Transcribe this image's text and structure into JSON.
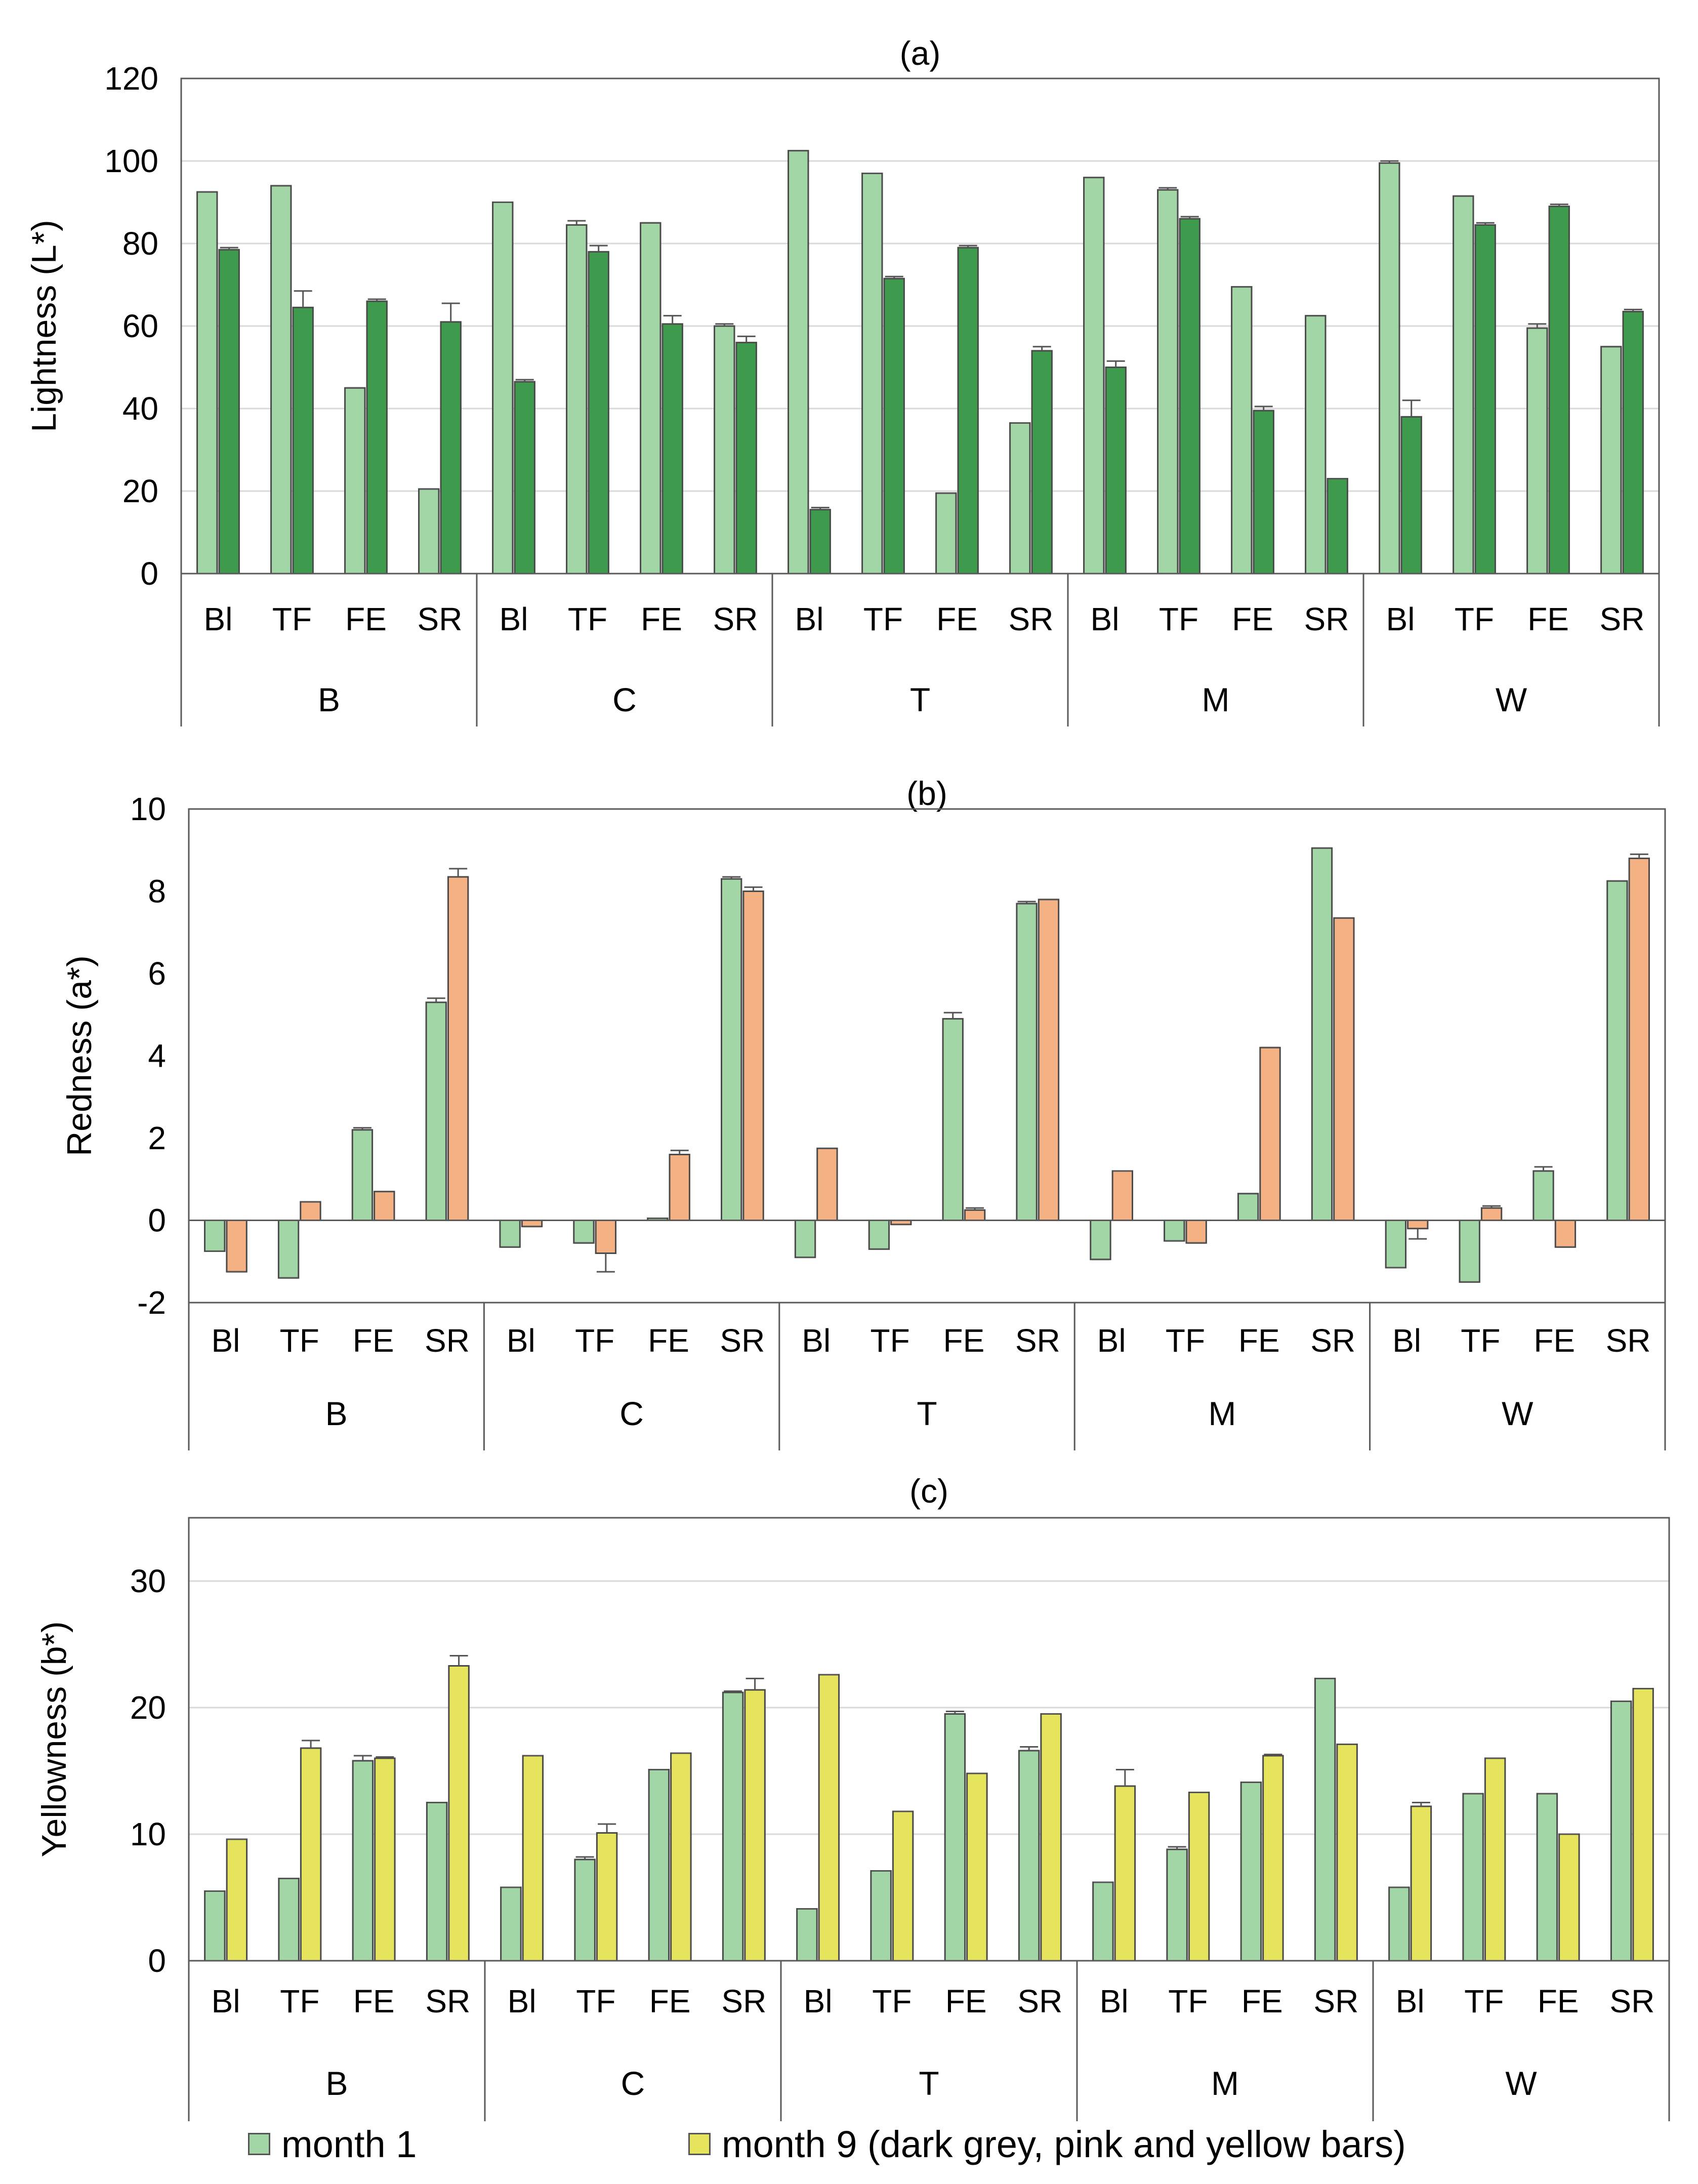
{
  "chart_data": [
    {
      "type": "bar",
      "title": "(a)",
      "title_bold_part": "a",
      "ylabel": "Lightness (L*)",
      "ylim": [
        0,
        120
      ],
      "yticks": [
        0,
        20,
        40,
        60,
        80,
        100,
        120
      ],
      "grid": true,
      "groups": [
        "B",
        "C",
        "T",
        "M",
        "W"
      ],
      "categories": [
        "Bl",
        "TF",
        "FE",
        "SR"
      ],
      "series": [
        {
          "name": "month 1",
          "color": "#a2d6a6",
          "values": [
            [
              92.5,
              94,
              45,
              20.5
            ],
            [
              90,
              84.5,
              85,
              60
            ],
            [
              102.5,
              97,
              19.5,
              36.5
            ],
            [
              96,
              93,
              69.5,
              62.5
            ],
            [
              99.5,
              91.5,
              59.5,
              55
            ]
          ],
          "errors": [
            [
              0,
              0,
              0,
              0
            ],
            [
              0,
              1,
              0,
              0.5
            ],
            [
              0,
              0,
              0,
              0
            ],
            [
              0,
              0.5,
              0,
              0
            ],
            [
              0.5,
              0,
              1,
              0
            ]
          ]
        },
        {
          "name": "month 9",
          "color": "#3e9a4c",
          "values": [
            [
              78.5,
              64.5,
              66,
              61
            ],
            [
              46.5,
              78,
              60.5,
              56
            ],
            [
              15.5,
              71.5,
              79,
              54
            ],
            [
              50,
              86,
              39.5,
              23
            ],
            [
              38,
              84.5,
              89,
              63.5
            ]
          ],
          "errors": [
            [
              0.5,
              4,
              0.5,
              4.5
            ],
            [
              0.5,
              1.5,
              2,
              1.5
            ],
            [
              0.5,
              0.5,
              0.5,
              1
            ],
            [
              1.5,
              0.5,
              1,
              0
            ],
            [
              4,
              0.5,
              0.5,
              0.5
            ]
          ]
        }
      ]
    },
    {
      "type": "bar",
      "title": "(b)",
      "title_bold_part": "b",
      "ylabel": "Redness (a*)",
      "ylim": [
        -2,
        10
      ],
      "yticks": [
        -2,
        0,
        2,
        4,
        6,
        8,
        10
      ],
      "grid": false,
      "groups": [
        "B",
        "C",
        "T",
        "M",
        "W"
      ],
      "categories": [
        "Bl",
        "TF",
        "FE",
        "SR"
      ],
      "series": [
        {
          "name": "month 1",
          "color": "#a2d6a6",
          "values": [
            [
              -0.75,
              -1.4,
              2.2,
              5.3
            ],
            [
              -0.65,
              -0.55,
              0.05,
              8.3
            ],
            [
              -0.9,
              -0.7,
              4.9,
              7.7
            ],
            [
              -0.95,
              -0.5,
              0.65,
              9.05
            ],
            [
              -1.15,
              -1.5,
              1.2,
              8.25
            ]
          ],
          "errors": [
            [
              0,
              0,
              0.05,
              0.1
            ],
            [
              0,
              0,
              0,
              0.05
            ],
            [
              0,
              0,
              0.15,
              0.05
            ],
            [
              0,
              0,
              0,
              0
            ],
            [
              0,
              0,
              0.1,
              0
            ]
          ]
        },
        {
          "name": "month 9",
          "color": "#f4b183",
          "values": [
            [
              -1.25,
              0.45,
              0.7,
              8.35
            ],
            [
              -0.15,
              -0.8,
              1.6,
              8.0
            ],
            [
              1.75,
              -0.1,
              0.25,
              7.8
            ],
            [
              1.2,
              -0.55,
              4.2,
              7.35
            ],
            [
              -0.2,
              0.3,
              -0.65,
              8.8
            ]
          ],
          "errors": [
            [
              0,
              0,
              0,
              0.2
            ],
            [
              0,
              0.45,
              0.1,
              0.1
            ],
            [
              0,
              0,
              0.05,
              0
            ],
            [
              0,
              0,
              0,
              0
            ],
            [
              0.25,
              0.05,
              0,
              0.1
            ]
          ]
        }
      ]
    },
    {
      "type": "bar",
      "title": "(c)",
      "ylabel": "Yellowness (b*)",
      "ylim": [
        0,
        35
      ],
      "yticks": [
        0,
        10,
        20,
        30
      ],
      "grid": true,
      "groups": [
        "B",
        "C",
        "T",
        "M",
        "W"
      ],
      "categories": [
        "Bl",
        "TF",
        "FE",
        "SR"
      ],
      "series": [
        {
          "name": "month 1",
          "color": "#a2d6a6",
          "values": [
            [
              5.5,
              6.5,
              15.8,
              12.5
            ],
            [
              5.8,
              8,
              15.1,
              21.2
            ],
            [
              4.1,
              7.1,
              19.5,
              16.6
            ],
            [
              6.2,
              8.8,
              14.1,
              22.3
            ],
            [
              5.8,
              13.2,
              13.2,
              20.5
            ]
          ],
          "errors": [
            [
              0,
              0,
              0.4,
              0
            ],
            [
              0,
              0.2,
              0,
              0.1
            ],
            [
              0,
              0,
              0.2,
              0.3
            ],
            [
              0,
              0.2,
              0,
              0
            ],
            [
              0,
              0,
              0,
              0
            ]
          ]
        },
        {
          "name": "month 9",
          "color": "#e6e35c",
          "values": [
            [
              9.6,
              16.8,
              16,
              23.3
            ],
            [
              16.2,
              10.1,
              16.4,
              21.4
            ],
            [
              22.6,
              11.8,
              14.8,
              19.5
            ],
            [
              13.8,
              13.3,
              16.2,
              17.1
            ],
            [
              12.2,
              16,
              10,
              21.5
            ]
          ],
          "errors": [
            [
              0,
              0.6,
              0.1,
              0.8
            ],
            [
              0,
              0.7,
              0,
              0.9
            ],
            [
              0,
              0,
              0,
              0
            ],
            [
              1.3,
              0,
              0.1,
              0
            ],
            [
              0.3,
              0,
              0,
              0
            ]
          ]
        }
      ]
    }
  ],
  "legend": {
    "items": [
      {
        "label": "month 1",
        "color": "#a2d6a6"
      },
      {
        "label": "month 9 (dark grey, pink and yellow bars)",
        "color": "#e6e35c"
      }
    ]
  }
}
